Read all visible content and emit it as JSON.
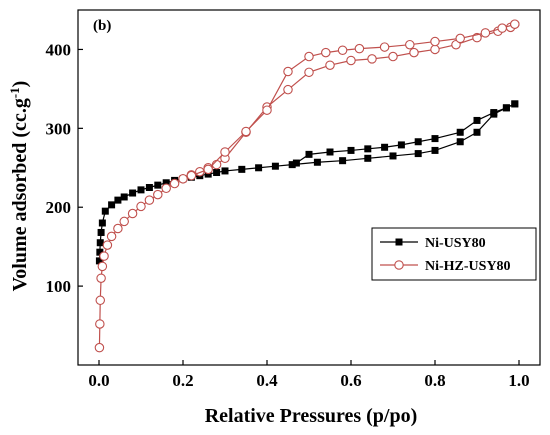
{
  "panel_label": "(b)",
  "chart_data": {
    "type": "line",
    "title": "",
    "xlabel": "Relative Pressures (p/po)",
    "ylabel": "Volume adsorbed (cc.g",
    "ylabel_superscript": "-1",
    "ylabel_suffix": ")",
    "xlim": [
      -0.05,
      1.05
    ],
    "ylim": [
      0,
      450
    ],
    "xticks": [
      0.0,
      0.2,
      0.4,
      0.6,
      0.8,
      1.0
    ],
    "xtick_labels": [
      "0.0",
      "0.2",
      "0.4",
      "0.6",
      "0.8",
      "1.0"
    ],
    "yticks": [
      100,
      200,
      300,
      400
    ],
    "ytick_labels": [
      "100",
      "200",
      "300",
      "400"
    ],
    "grid": false,
    "legend_position": "lower-right",
    "series": [
      {
        "name": "Ni-USY80",
        "color": "#000000",
        "marker": "filled-square",
        "adsorption": [
          [
            0.001,
            132
          ],
          [
            0.002,
            143
          ],
          [
            0.003,
            155
          ],
          [
            0.005,
            168
          ],
          [
            0.008,
            180
          ],
          [
            0.015,
            195
          ],
          [
            0.03,
            203
          ],
          [
            0.045,
            209
          ],
          [
            0.06,
            213
          ],
          [
            0.08,
            218
          ],
          [
            0.1,
            222
          ],
          [
            0.12,
            225
          ],
          [
            0.14,
            228
          ],
          [
            0.16,
            231
          ],
          [
            0.18,
            234
          ],
          [
            0.2,
            236
          ],
          [
            0.22,
            238
          ],
          [
            0.24,
            240
          ],
          [
            0.26,
            242
          ],
          [
            0.28,
            244
          ],
          [
            0.3,
            246
          ],
          [
            0.34,
            248
          ],
          [
            0.38,
            250
          ],
          [
            0.42,
            252
          ],
          [
            0.46,
            254
          ],
          [
            0.52,
            257
          ],
          [
            0.58,
            259
          ],
          [
            0.64,
            262
          ],
          [
            0.7,
            265
          ],
          [
            0.76,
            268
          ],
          [
            0.8,
            272
          ],
          [
            0.86,
            283
          ],
          [
            0.9,
            295
          ],
          [
            0.94,
            318
          ],
          [
            0.97,
            326
          ],
          [
            0.99,
            331
          ]
        ],
        "desorption": [
          [
            0.99,
            331
          ],
          [
            0.97,
            326
          ],
          [
            0.94,
            320
          ],
          [
            0.9,
            310
          ],
          [
            0.86,
            295
          ],
          [
            0.8,
            287
          ],
          [
            0.76,
            283
          ],
          [
            0.72,
            279
          ],
          [
            0.68,
            276
          ],
          [
            0.64,
            274
          ],
          [
            0.6,
            272
          ],
          [
            0.55,
            270
          ],
          [
            0.5,
            267
          ],
          [
            0.47,
            256
          ]
        ]
      },
      {
        "name": "Ni-HZ-USY80",
        "color": "#c0504d",
        "marker": "open-circle",
        "adsorption": [
          [
            0.001,
            22
          ],
          [
            0.002,
            52
          ],
          [
            0.003,
            82
          ],
          [
            0.005,
            110
          ],
          [
            0.008,
            125
          ],
          [
            0.012,
            138
          ],
          [
            0.02,
            152
          ],
          [
            0.03,
            163
          ],
          [
            0.045,
            173
          ],
          [
            0.06,
            182
          ],
          [
            0.08,
            192
          ],
          [
            0.1,
            201
          ],
          [
            0.12,
            209
          ],
          [
            0.14,
            216
          ],
          [
            0.16,
            224
          ],
          [
            0.18,
            230
          ],
          [
            0.2,
            236
          ],
          [
            0.22,
            241
          ],
          [
            0.24,
            245
          ],
          [
            0.26,
            250
          ],
          [
            0.28,
            254
          ],
          [
            0.3,
            262
          ],
          [
            0.35,
            295
          ],
          [
            0.4,
            327
          ],
          [
            0.45,
            349
          ],
          [
            0.5,
            371
          ],
          [
            0.55,
            380
          ],
          [
            0.6,
            386
          ],
          [
            0.65,
            388
          ],
          [
            0.7,
            391
          ],
          [
            0.75,
            396
          ],
          [
            0.8,
            400
          ],
          [
            0.85,
            406
          ],
          [
            0.9,
            415
          ],
          [
            0.95,
            423
          ],
          [
            0.98,
            428
          ],
          [
            0.99,
            432
          ]
        ],
        "desorption": [
          [
            0.99,
            432
          ],
          [
            0.96,
            427
          ],
          [
            0.92,
            421
          ],
          [
            0.86,
            414
          ],
          [
            0.8,
            410
          ],
          [
            0.74,
            406
          ],
          [
            0.68,
            403
          ],
          [
            0.62,
            401
          ],
          [
            0.58,
            399
          ],
          [
            0.54,
            396
          ],
          [
            0.5,
            391
          ],
          [
            0.45,
            372
          ],
          [
            0.4,
            323
          ],
          [
            0.35,
            296
          ],
          [
            0.3,
            270
          ],
          [
            0.26,
            248
          ],
          [
            0.22,
            240
          ],
          [
            0.2,
            236
          ]
        ]
      }
    ]
  }
}
